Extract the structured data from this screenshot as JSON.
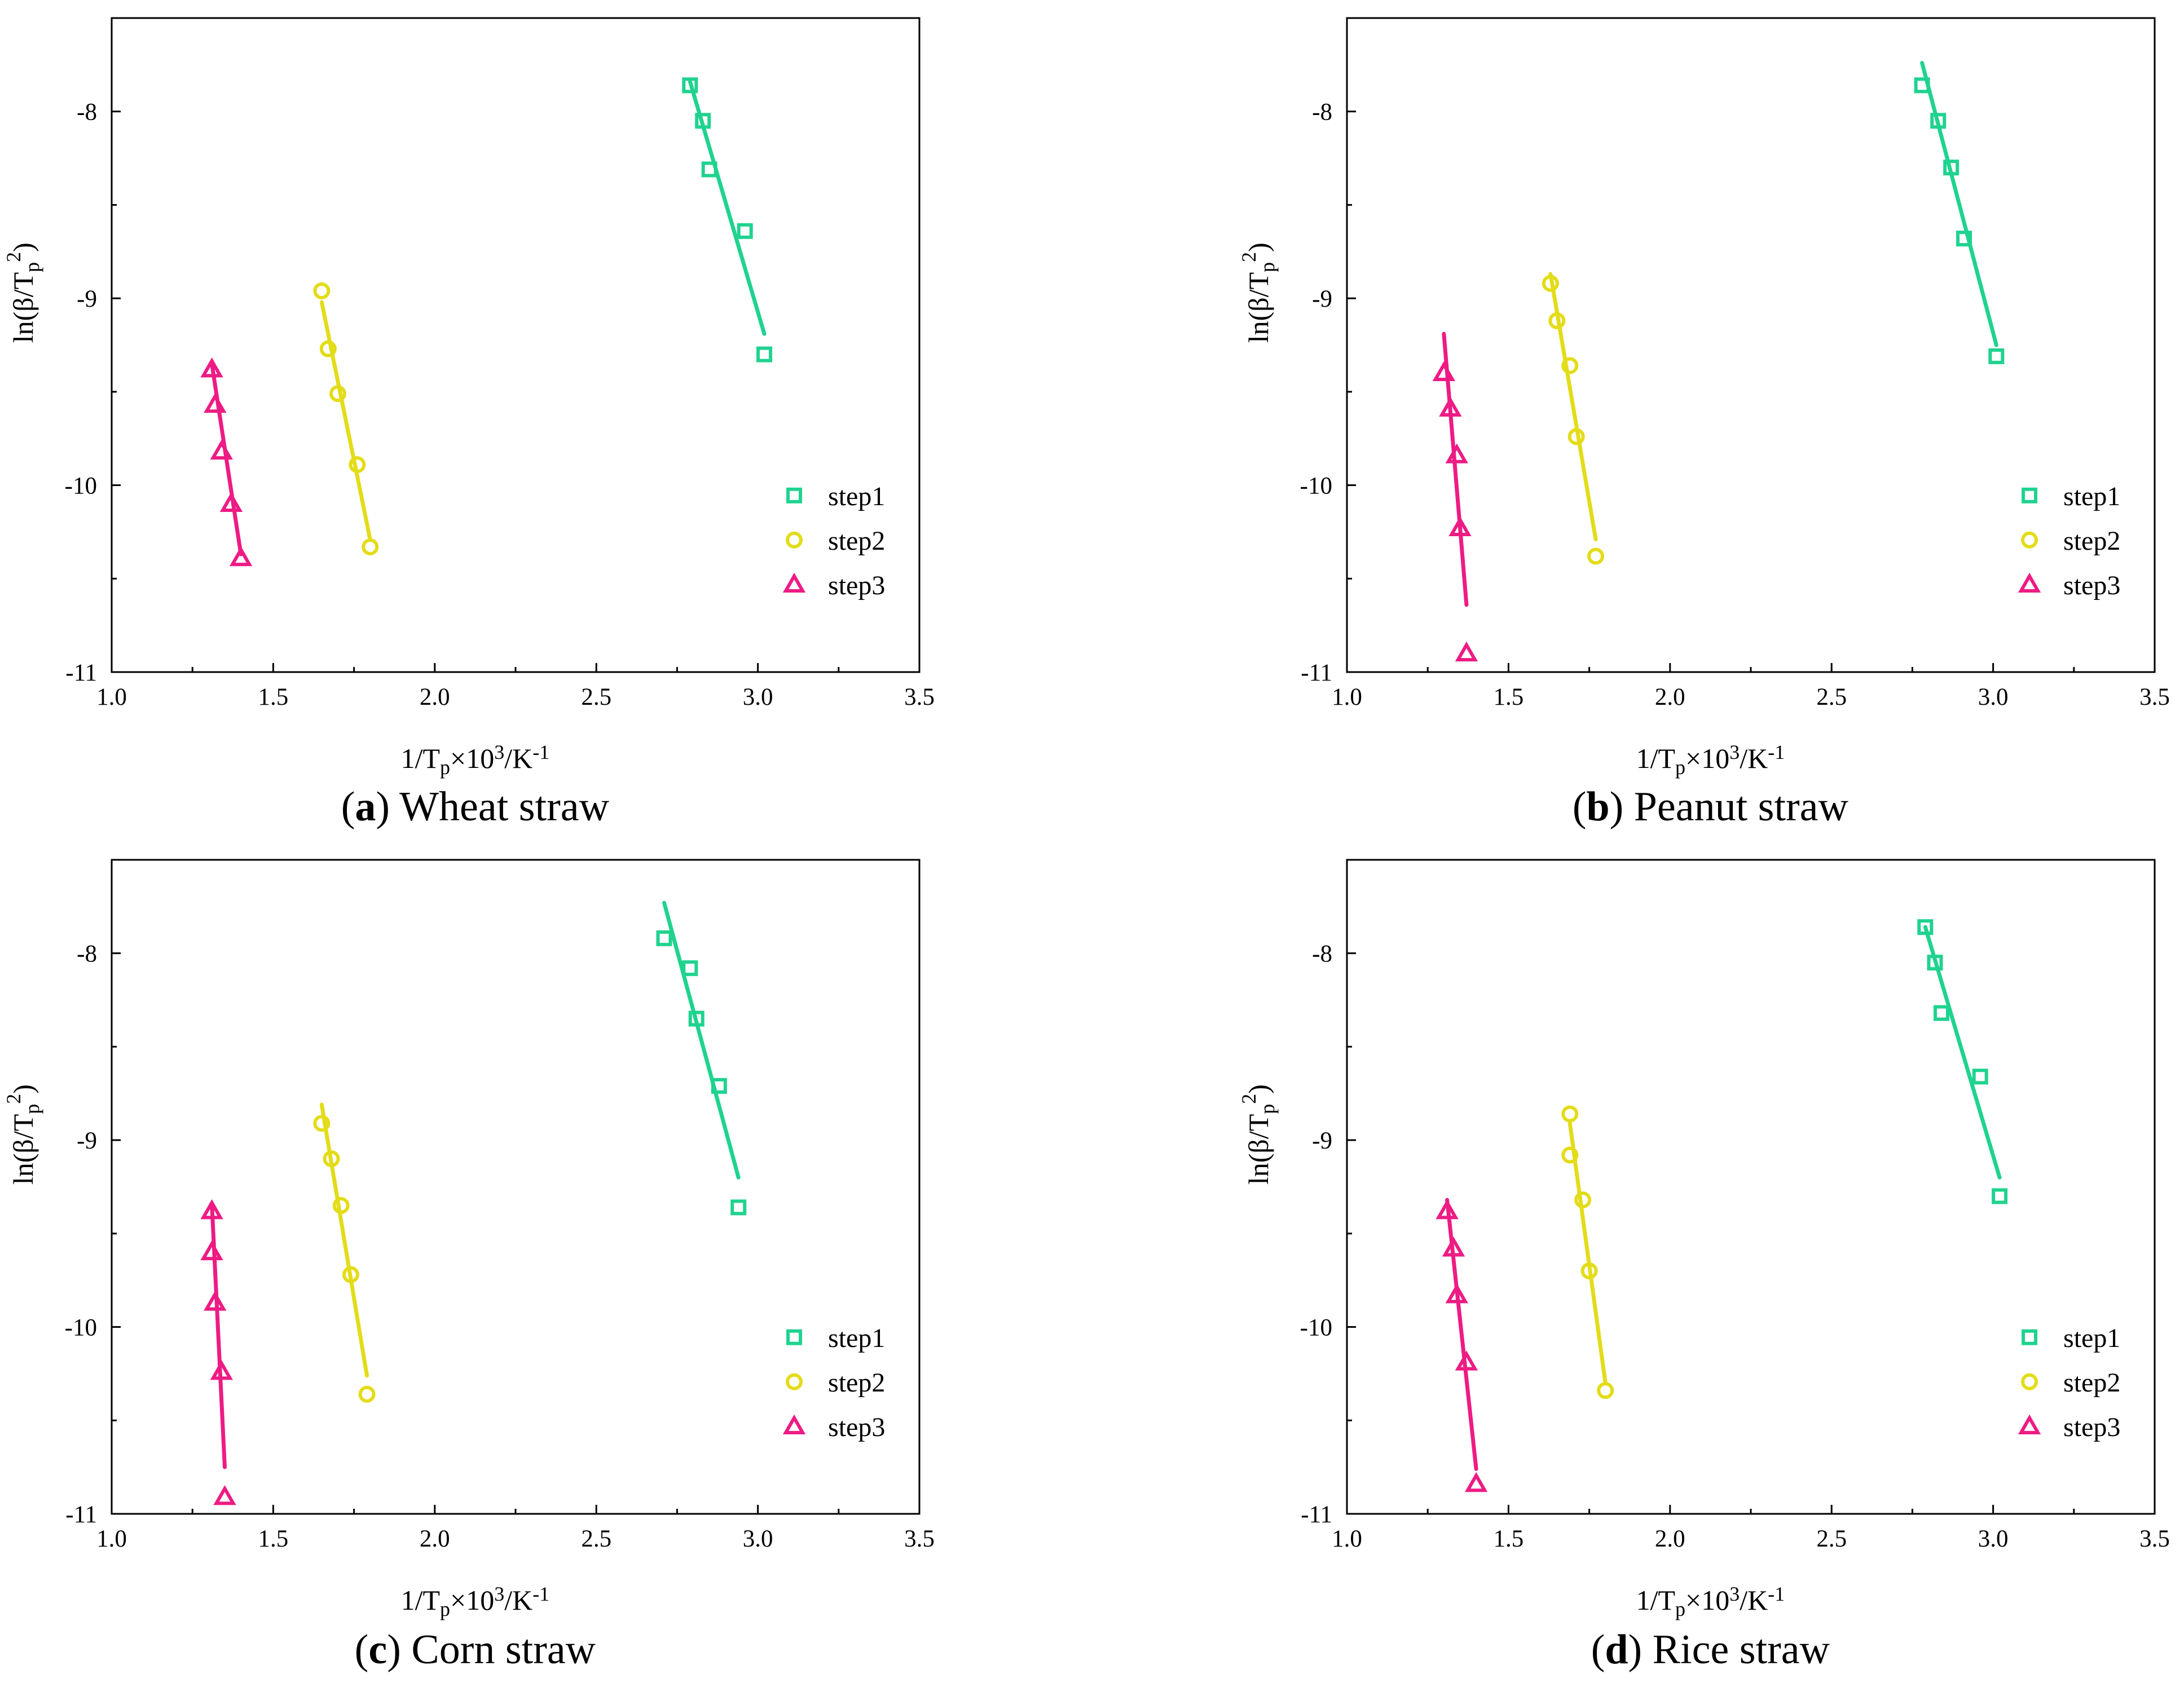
{
  "figure": {
    "colors": {
      "step1": "#1fd38f",
      "step2": "#e3dc18",
      "step3": "#ee1b84",
      "axis": "#000000"
    }
  },
  "chart_data": [
    {
      "type": "scatter",
      "panel": "a",
      "caption_letter": "a",
      "title": "Wheat straw",
      "xlabel": "1/Tp×10³/K⁻¹",
      "ylabel": "ln(β/Tp²)",
      "xlim": [
        1.0,
        3.5
      ],
      "ylim": [
        -11,
        -7.5
      ],
      "xticks": [
        "1.0",
        "1.5",
        "2.0",
        "2.5",
        "3.0",
        "3.5"
      ],
      "yticks": [
        "-8",
        "-9",
        "-10",
        "-11"
      ],
      "legend_position": "bottom-right",
      "series": [
        {
          "name": "step1",
          "marker": "square",
          "x": [
            2.79,
            2.83,
            2.85,
            2.96,
            3.02
          ],
          "y": [
            -7.86,
            -8.05,
            -8.31,
            -8.64,
            -9.3
          ],
          "fit": [
            [
              2.79,
              -7.84
            ],
            [
              3.02,
              -9.19
            ]
          ]
        },
        {
          "name": "step2",
          "marker": "circle",
          "x": [
            1.65,
            1.67,
            1.7,
            1.76,
            1.8
          ],
          "y": [
            -8.96,
            -9.27,
            -9.51,
            -9.89,
            -10.33
          ],
          "fit": [
            [
              1.65,
              -9.02
            ],
            [
              1.8,
              -10.29
            ]
          ]
        },
        {
          "name": "step3",
          "marker": "triangle",
          "x": [
            1.31,
            1.32,
            1.34,
            1.37,
            1.4
          ],
          "y": [
            -9.38,
            -9.57,
            -9.82,
            -10.1,
            -10.39
          ],
          "fit": [
            [
              1.31,
              -9.35
            ],
            [
              1.4,
              -10.37
            ]
          ]
        }
      ]
    },
    {
      "type": "scatter",
      "panel": "b",
      "caption_letter": "b",
      "title": "Peanut straw",
      "xlabel": "1/Tp×10³/K⁻¹",
      "ylabel": "ln(β/Tp²)",
      "xlim": [
        1.0,
        3.5
      ],
      "ylim": [
        -11,
        -7.5
      ],
      "xticks": [
        "1.0",
        "1.5",
        "2.0",
        "2.5",
        "3.0",
        "3.5"
      ],
      "yticks": [
        "-8",
        "-9",
        "-10",
        "-11"
      ],
      "legend_position": "bottom-right",
      "series": [
        {
          "name": "step1",
          "marker": "square",
          "x": [
            2.78,
            2.83,
            2.87,
            2.91,
            3.01
          ],
          "y": [
            -7.86,
            -8.05,
            -8.3,
            -8.68,
            -9.31
          ],
          "fit": [
            [
              2.78,
              -7.74
            ],
            [
              3.01,
              -9.25
            ]
          ]
        },
        {
          "name": "step2",
          "marker": "circle",
          "x": [
            1.63,
            1.65,
            1.69,
            1.71,
            1.77
          ],
          "y": [
            -8.92,
            -9.12,
            -9.36,
            -9.74,
            -10.38
          ],
          "fit": [
            [
              1.63,
              -8.87
            ],
            [
              1.77,
              -10.29
            ]
          ]
        },
        {
          "name": "step3",
          "marker": "triangle",
          "x": [
            1.3,
            1.32,
            1.34,
            1.35,
            1.37
          ],
          "y": [
            -9.4,
            -9.59,
            -9.84,
            -10.23,
            -10.9
          ],
          "fit": [
            [
              1.3,
              -9.19
            ],
            [
              1.37,
              -10.64
            ]
          ]
        }
      ]
    },
    {
      "type": "scatter",
      "panel": "c",
      "caption_letter": "c",
      "title": "Corn straw",
      "xlabel": "1/Tp×10³/K⁻¹",
      "ylabel": "ln(β/Tp²)",
      "xlim": [
        1.0,
        3.5
      ],
      "ylim": [
        -11,
        -7.5
      ],
      "xticks": [
        "1.0",
        "1.5",
        "2.0",
        "2.5",
        "3.0",
        "3.5"
      ],
      "yticks": [
        "-8",
        "-9",
        "-10",
        "-11"
      ],
      "legend_position": "bottom-right",
      "series": [
        {
          "name": "step1",
          "marker": "square",
          "x": [
            2.71,
            2.79,
            2.81,
            2.88,
            2.94
          ],
          "y": [
            -7.92,
            -8.08,
            -8.35,
            -8.71,
            -9.36
          ],
          "fit": [
            [
              2.71,
              -7.73
            ],
            [
              2.94,
              -9.2
            ]
          ]
        },
        {
          "name": "step2",
          "marker": "circle",
          "x": [
            1.65,
            1.68,
            1.71,
            1.74,
            1.79
          ],
          "y": [
            -8.91,
            -9.1,
            -9.35,
            -9.72,
            -10.36
          ],
          "fit": [
            [
              1.65,
              -8.81
            ],
            [
              1.79,
              -10.26
            ]
          ]
        },
        {
          "name": "step3",
          "marker": "triangle",
          "x": [
            1.31,
            1.31,
            1.32,
            1.34,
            1.35
          ],
          "y": [
            -9.38,
            -9.6,
            -9.87,
            -10.24,
            -10.91
          ],
          "fit": [
            [
              1.31,
              -9.34
            ],
            [
              1.35,
              -10.75
            ]
          ]
        }
      ]
    },
    {
      "type": "scatter",
      "panel": "d",
      "caption_letter": "d",
      "title": "Rice straw",
      "xlabel": "1/Tp×10³/K⁻¹",
      "ylabel": "ln(β/Tp²)",
      "xlim": [
        1.0,
        3.5
      ],
      "ylim": [
        -11,
        -7.5
      ],
      "xticks": [
        "1.0",
        "1.5",
        "2.0",
        "2.5",
        "3.0",
        "3.5"
      ],
      "yticks": [
        "-8",
        "-9",
        "-10",
        "-11"
      ],
      "legend_position": "bottom-right",
      "series": [
        {
          "name": "step1",
          "marker": "square",
          "x": [
            2.79,
            2.82,
            2.84,
            2.96,
            3.02
          ],
          "y": [
            -7.86,
            -8.05,
            -8.32,
            -8.66,
            -9.3
          ],
          "fit": [
            [
              2.79,
              -7.86
            ],
            [
              3.02,
              -9.2
            ]
          ]
        },
        {
          "name": "step2",
          "marker": "circle",
          "x": [
            1.69,
            1.69,
            1.73,
            1.75,
            1.8
          ],
          "y": [
            -8.86,
            -9.08,
            -9.32,
            -9.7,
            -10.34
          ],
          "fit": [
            [
              1.69,
              -8.91
            ],
            [
              1.8,
              -10.3
            ]
          ]
        },
        {
          "name": "step3",
          "marker": "triangle",
          "x": [
            1.31,
            1.33,
            1.34,
            1.37,
            1.4
          ],
          "y": [
            -9.38,
            -9.58,
            -9.83,
            -10.19,
            -10.84
          ],
          "fit": [
            [
              1.31,
              -9.32
            ],
            [
              1.4,
              -10.76
            ]
          ]
        }
      ]
    }
  ]
}
